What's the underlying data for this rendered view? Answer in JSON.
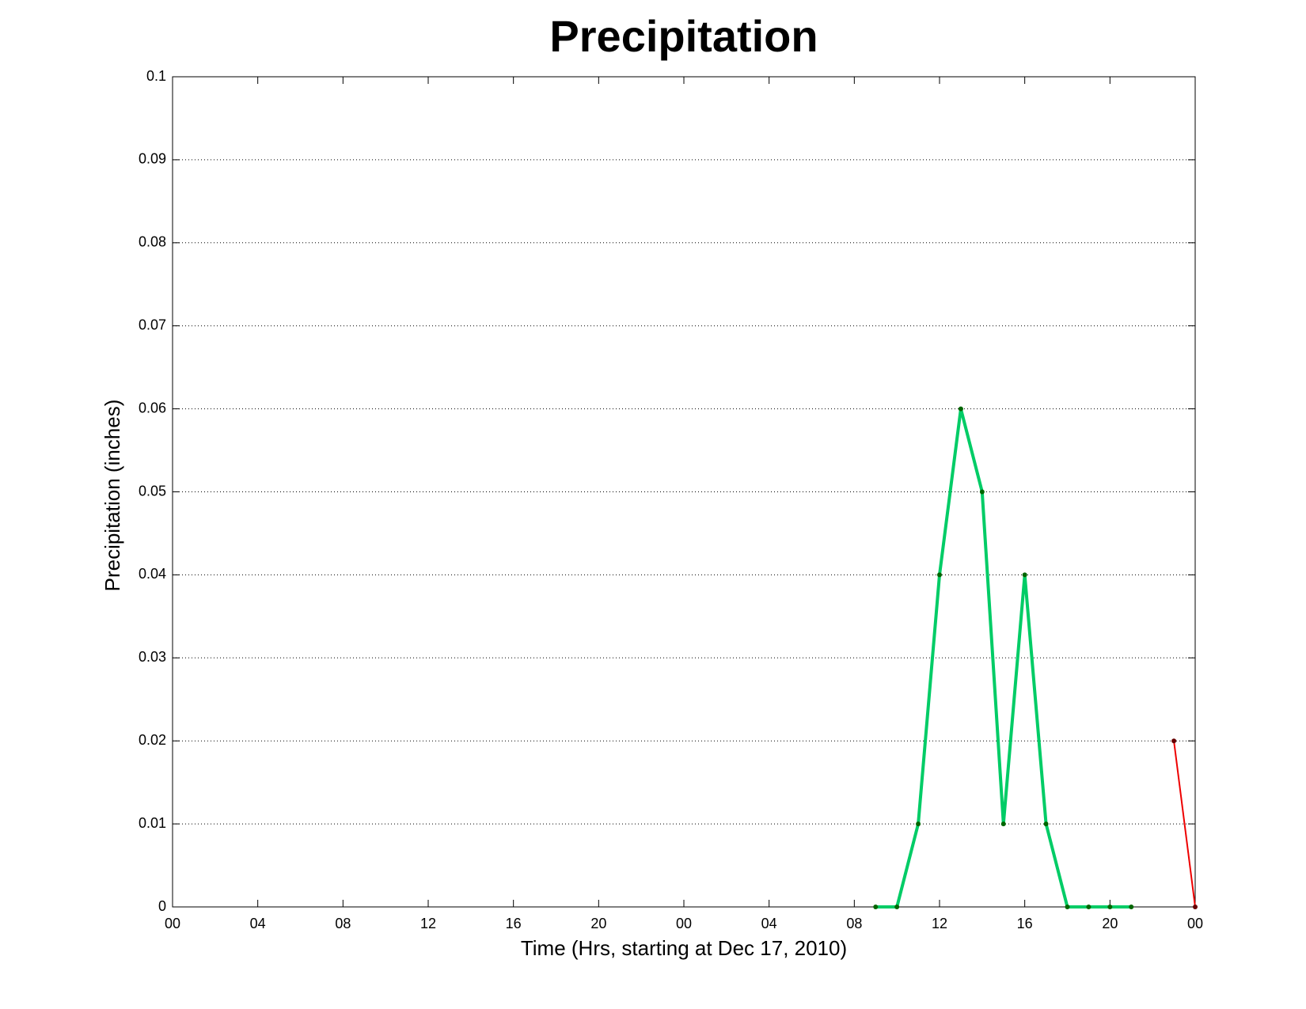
{
  "chart_data": {
    "type": "line",
    "title": "Precipitation",
    "x_label": "Time (Hrs, starting at Dec 17, 2010)",
    "y_label": "Precipitation (inches)",
    "xlim": [
      0,
      48
    ],
    "xticks": [
      {
        "value": 0,
        "label": "00"
      },
      {
        "value": 4,
        "label": "04"
      },
      {
        "value": 8,
        "label": "08"
      },
      {
        "value": 12,
        "label": "12"
      },
      {
        "value": 16,
        "label": "16"
      },
      {
        "value": 20,
        "label": "20"
      },
      {
        "value": 24,
        "label": "00"
      },
      {
        "value": 28,
        "label": "04"
      },
      {
        "value": 32,
        "label": "08"
      },
      {
        "value": 36,
        "label": "12"
      },
      {
        "value": 40,
        "label": "16"
      },
      {
        "value": 44,
        "label": "20"
      },
      {
        "value": 48,
        "label": "00"
      }
    ],
    "ylim": [
      0,
      0.1
    ],
    "yticks": [
      0,
      0.01,
      0.02,
      0.03,
      0.04,
      0.05,
      0.06,
      0.07,
      0.08,
      0.09,
      0.1
    ],
    "grid": true,
    "series": [
      {
        "color": "#00cc66",
        "marker_color": "#006600",
        "line_width": 4,
        "x": [
          33,
          34,
          35,
          36,
          37,
          38,
          39,
          40,
          41,
          42,
          43,
          44,
          45
        ],
        "values": [
          0,
          0,
          0.01,
          0.04,
          0.06,
          0.05,
          0.01,
          0.04,
          0.01,
          0,
          0,
          0,
          0
        ]
      },
      {
        "color": "#ee0000",
        "marker_color": "#660000",
        "line_width": 2,
        "x": [
          47,
          48
        ],
        "values": [
          0.02,
          0
        ]
      }
    ]
  }
}
